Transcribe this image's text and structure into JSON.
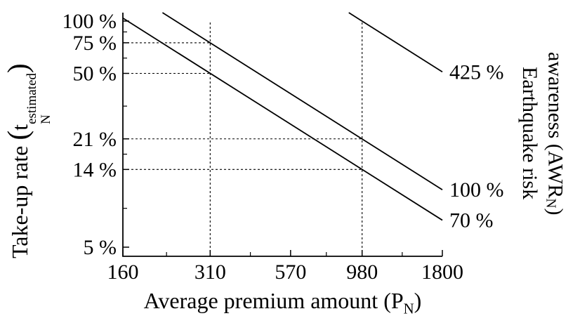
{
  "figure": {
    "ylabel": {
      "prefix": "Take-up rate ",
      "lparen": "(",
      "base": "t",
      "sup": "estimated",
      "sub": "N",
      "rparen": ")"
    },
    "xlabel": {
      "prefix": "Average premium amount (P",
      "sub": "N",
      "suffix": ")"
    },
    "right_label": {
      "line1": "Earthquake risk",
      "line2_prefix": "awareness (AWR",
      "line2_sub": "N",
      "line2_suffix": ")"
    }
  },
  "chart_data": {
    "type": "line",
    "title": "",
    "x_axis": {
      "label": "Average premium amount (P_N)",
      "scale": "log",
      "range": [
        160,
        1800
      ],
      "ticks": [
        160,
        310,
        570,
        980,
        1800
      ],
      "tick_labels": [
        "160",
        "310",
        "570",
        "980",
        "1800"
      ]
    },
    "y_axis": {
      "label": "Take-up rate (t_N^estimated)",
      "unit": "%",
      "scale": "log",
      "range_pct": [
        4.4,
        112
      ],
      "ticks": [
        100,
        75,
        50,
        21,
        14,
        5
      ],
      "tick_labels": [
        "100 %",
        "75 %",
        "50 %",
        "21 %",
        "14 %",
        "5 %"
      ]
    },
    "right_axis_label": "Earthquake risk awareness (AWR_N)",
    "grid": "dashed-guides-only",
    "legend_position": "labels-at-line-ends-right",
    "loglog_slope": -1.11,
    "series": [
      {
        "name": "AWR_N = 425 %",
        "label": "425 %",
        "anchors_x_vs_pct": [
          [
            980,
            100
          ]
        ],
        "draw_endpoints": [
          [
            886,
            111.8
          ],
          [
            1800,
            51.0
          ]
        ]
      },
      {
        "name": "AWR_N = 100 %",
        "label": "100 %",
        "anchors_x_vs_pct": [
          [
            310,
            75
          ],
          [
            980,
            21
          ]
        ],
        "draw_endpoints": [
          [
            216,
            111.8
          ],
          [
            1800,
            10.7
          ]
        ]
      },
      {
        "name": "AWR_N = 70 %",
        "label": "70 %",
        "anchors_x_vs_pct": [
          [
            310,
            50
          ],
          [
            980,
            14
          ]
        ],
        "draw_endpoints": [
          [
            160,
            104.0
          ],
          [
            1800,
            7.15
          ]
        ]
      }
    ],
    "guides": {
      "horizontal": [
        {
          "y_pct": 75,
          "to_x": 310
        },
        {
          "y_pct": 50,
          "to_x": 310
        },
        {
          "y_pct": 21,
          "to_x": 980
        },
        {
          "y_pct": 14,
          "to_x": 980
        }
      ],
      "vertical": [
        {
          "x": 310,
          "to_y_pct": 100
        },
        {
          "x": 980,
          "to_y_pct": 100
        }
      ]
    },
    "colors": {
      "line": "#000000",
      "guide": "#000000",
      "axis": "#000000",
      "background": "#ffffff"
    }
  }
}
